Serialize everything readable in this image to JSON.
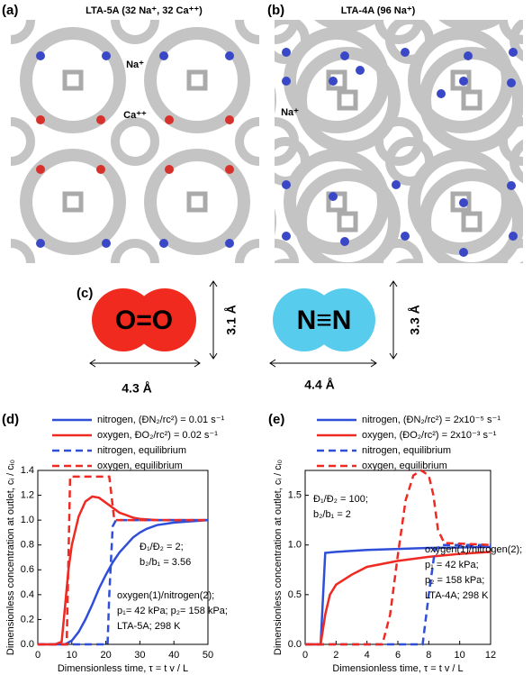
{
  "panels": [
    {
      "label": "(a)",
      "title": "LTA-5A (32 Na⁺, 32 Ca⁺⁺)",
      "annotations": [
        "Na⁺",
        "Ca⁺⁺"
      ]
    },
    {
      "label": "(b)",
      "title": "LTA-4A (96 Na⁺)",
      "annotations": [
        "Na⁺"
      ]
    }
  ],
  "molecules": {
    "label": "(c)",
    "items": [
      {
        "formula": "O=O",
        "width": "4.3 Å",
        "height": "3.1 Å"
      },
      {
        "formula": "N≡N",
        "width": "4.4 Å",
        "height": "3.3 Å"
      }
    ]
  },
  "chart_data": [
    {
      "type": "line",
      "panel_label": "(d)",
      "xlabel": "Dimensionless time, τ = t v / L",
      "ylabel": "Dimensionless concentration at outlet, cᵢ / cᵢ₀",
      "xlim": [
        0,
        50
      ],
      "xticks": [
        0,
        10,
        20,
        30,
        40,
        50
      ],
      "ylim": [
        0,
        1.4
      ],
      "yticks": [
        {
          "value": 0,
          "label": "0.0"
        },
        0.2,
        0.4,
        0.6,
        0.8,
        {
          "value": 1,
          "label": "1.0"
        },
        1.2,
        1.4
      ],
      "annotations": [
        "Đ₁/Đ₂ = 2;",
        "b₂/b₁ = 3.56",
        "oxygen(1)/nitrogen(2);",
        "p₁= 42 kPa; p₂= 158 kPa;",
        "LTA-5A; 298  K"
      ],
      "series": [
        {
          "name": "nitrogen, (ĐN₂/rc²) = 0.01 s⁻¹",
          "color": "#2f4fd8",
          "dashed": false,
          "x": [
            0,
            8,
            10,
            12,
            14,
            16,
            18,
            20,
            22,
            24,
            26,
            28,
            30,
            32,
            35,
            40,
            45,
            50
          ],
          "values": [
            0,
            0,
            0.03,
            0.1,
            0.2,
            0.32,
            0.45,
            0.56,
            0.66,
            0.74,
            0.8,
            0.86,
            0.9,
            0.93,
            0.96,
            0.98,
            0.99,
            1.0
          ]
        },
        {
          "name": "oxygen, ĐO₂/rc²) = 0.02 s⁻¹",
          "color": "#ee2a22",
          "dashed": false,
          "x": [
            0,
            5,
            7,
            8,
            9,
            10,
            12,
            14,
            16,
            18,
            20,
            22,
            24,
            26,
            28,
            30,
            35,
            40,
            50
          ],
          "values": [
            0,
            0,
            0.02,
            0.3,
            0.6,
            0.8,
            1.03,
            1.15,
            1.19,
            1.18,
            1.14,
            1.1,
            1.06,
            1.04,
            1.02,
            1.01,
            1.0,
            1.0,
            1.0
          ]
        },
        {
          "name": "nitrogen, equilibrium",
          "color": "#2f4fd8",
          "dashed": true,
          "x": [
            0,
            20.5,
            21,
            22,
            23,
            50
          ],
          "values": [
            0,
            0,
            0.4,
            0.95,
            1.0,
            1.0
          ]
        },
        {
          "name": "oxygen, equilibrium",
          "color": "#ee2a22",
          "dashed": true,
          "x": [
            0,
            8.5,
            9.5,
            21,
            22.5,
            50
          ],
          "values": [
            0,
            0,
            1.35,
            1.35,
            1.0,
            1.0
          ]
        }
      ]
    },
    {
      "type": "line",
      "panel_label": "(e)",
      "xlabel": "Dimensionless time, τ = t v / L",
      "ylabel": "Dimensionless concentration at outlet, cᵢ / cᵢ₀",
      "xlim": [
        0,
        12
      ],
      "xticks": [
        0,
        2,
        4,
        6,
        8,
        10,
        12
      ],
      "ylim": [
        0,
        1.75
      ],
      "yticks": [
        {
          "value": 0,
          "label": "0.0"
        },
        0.5,
        {
          "value": 1,
          "label": "1.0"
        },
        1.5
      ],
      "annotations": [
        "Đ₁/Đ₂ = 100;",
        "b₂/b₁ = 2",
        "oxygen(1)/nitrogen(2);",
        "p₁ = 42 kPa;",
        "p₂ = 158 kPa;",
        "LTA-4A; 298  K"
      ],
      "series": [
        {
          "name": "nitrogen, (ĐN₂/rc²) = 2x10⁻⁵ s⁻¹",
          "color": "#2f4fd8",
          "dashed": false,
          "x": [
            0,
            1,
            1.3,
            2,
            4,
            8,
            12
          ],
          "values": [
            0,
            0,
            0.92,
            0.93,
            0.95,
            0.97,
            0.98
          ]
        },
        {
          "name": "oxygen, (ĐO₂/rc²) = 2x10⁻³ s⁻¹",
          "color": "#ee2a22",
          "dashed": false,
          "x": [
            0,
            1,
            1.3,
            1.6,
            2,
            3,
            4,
            6,
            8,
            10,
            12
          ],
          "values": [
            0,
            0,
            0.3,
            0.5,
            0.6,
            0.7,
            0.78,
            0.84,
            0.88,
            0.91,
            0.93
          ]
        },
        {
          "name": "nitrogen, equilibrium",
          "color": "#2f4fd8",
          "dashed": true,
          "x": [
            0,
            7.6,
            8,
            8.4,
            8.8,
            12
          ],
          "values": [
            0,
            0,
            0.5,
            0.95,
            1.0,
            1.0
          ]
        },
        {
          "name": "oxygen, equilibrium",
          "color": "#ee2a22",
          "dashed": true,
          "x": [
            0,
            5,
            5.5,
            6,
            6.5,
            7,
            7.5,
            8,
            8.3,
            8.6,
            9,
            12
          ],
          "values": [
            0,
            0,
            0.3,
            0.9,
            1.45,
            1.7,
            1.75,
            1.7,
            1.5,
            1.15,
            1.02,
            1.0
          ]
        }
      ]
    }
  ]
}
